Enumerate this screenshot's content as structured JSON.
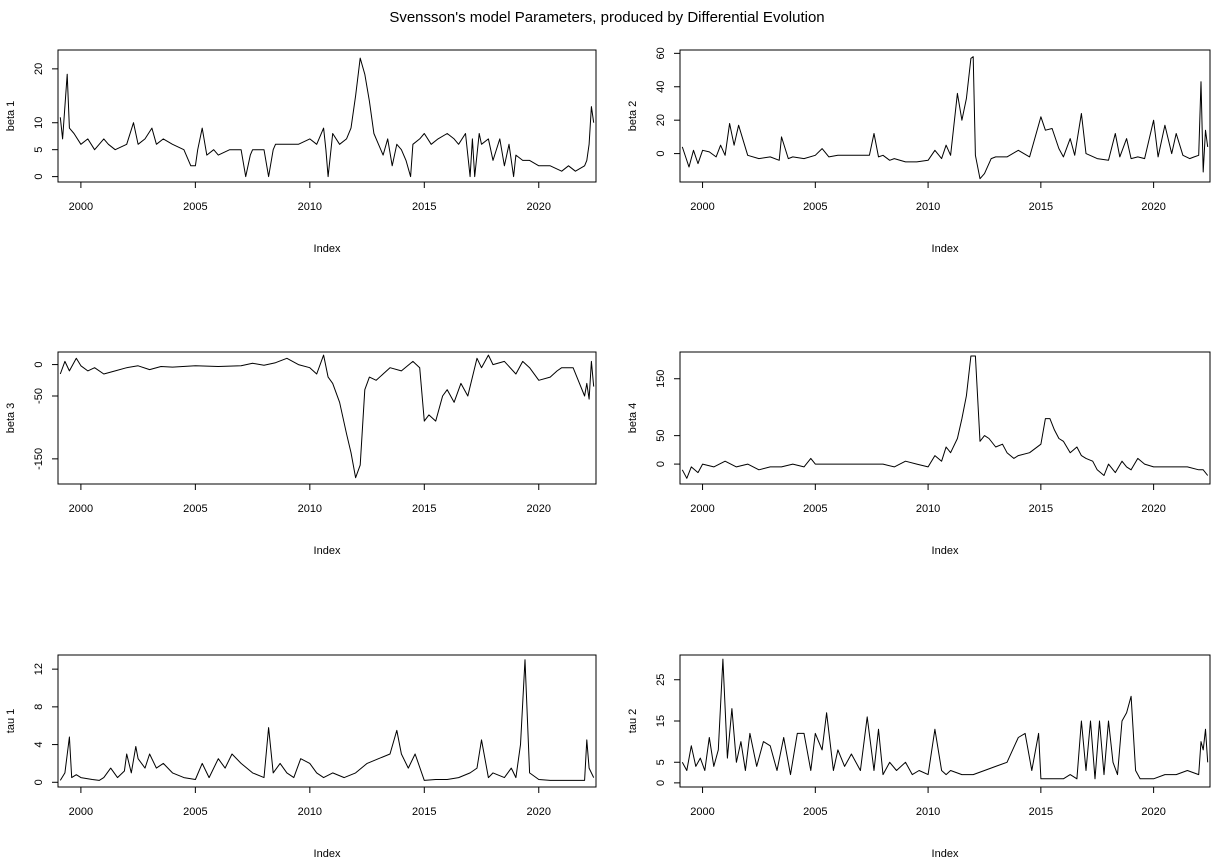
{
  "figure": {
    "title": "Svensson's model Parameters, produced by Differential Evolution"
  },
  "chart_data": [
    {
      "type": "line",
      "title": "",
      "xlabel": "Index",
      "ylabel": "beta 1",
      "xlim": [
        1999,
        2022.5
      ],
      "ylim": [
        -1,
        23.5
      ],
      "xticks": [
        2000,
        2005,
        2010,
        2015,
        2020
      ],
      "yticks": [
        0,
        5,
        10,
        20
      ],
      "series": [
        {
          "x": [
            1999.1,
            1999.2,
            1999.4,
            1999.5,
            1999.7,
            2000.0,
            2000.3,
            2000.6,
            2001.0,
            2001.2,
            2001.5,
            2002.0,
            2002.3,
            2002.5,
            2002.8,
            2003.1,
            2003.3,
            2003.6,
            2004.0,
            2004.5,
            2004.8,
            2005.0,
            2005.1,
            2005.3,
            2005.5,
            2005.8,
            2006.0,
            2006.5,
            2007.0,
            2007.2,
            2007.4,
            2007.5,
            2008.0,
            2008.2,
            2008.4,
            2008.5,
            2009.0,
            2009.5,
            2010.0,
            2010.3,
            2010.6,
            2010.7,
            2010.8,
            2011.0,
            2011.3,
            2011.6,
            2011.8,
            2012.0,
            2012.2,
            2012.4,
            2012.6,
            2012.8,
            2013.0,
            2013.2,
            2013.4,
            2013.6,
            2013.8,
            2014.0,
            2014.2,
            2014.4,
            2014.5,
            2014.8,
            2015.0,
            2015.3,
            2015.6,
            2016.0,
            2016.3,
            2016.5,
            2016.8,
            2017.0,
            2017.1,
            2017.2,
            2017.4,
            2017.5,
            2017.8,
            2018.0,
            2018.3,
            2018.5,
            2018.7,
            2018.9,
            2019.0,
            2019.3,
            2019.6,
            2020.0,
            2020.5,
            2021.0,
            2021.3,
            2021.6,
            2022.0,
            2022.1,
            2022.2,
            2022.3,
            2022.4
          ],
          "y": [
            11,
            7,
            19,
            9,
            8,
            6,
            7,
            5,
            7,
            6,
            5,
            6,
            10,
            6,
            7,
            9,
            6,
            7,
            6,
            5,
            2,
            2,
            5,
            9,
            4,
            5,
            4,
            5,
            5,
            0,
            4,
            5,
            5,
            0,
            5,
            6,
            6,
            6,
            7,
            6,
            9,
            5,
            0,
            8,
            6,
            7,
            9,
            15,
            22,
            19,
            14,
            8,
            6,
            4,
            7,
            2,
            6,
            5,
            3,
            0,
            6,
            7,
            8,
            6,
            7,
            8,
            7,
            6,
            8,
            0,
            7,
            0,
            8,
            6,
            7,
            3,
            7,
            2,
            6,
            0,
            4,
            3,
            3,
            2,
            2,
            1,
            2,
            1,
            2,
            3,
            6,
            13,
            10
          ]
        }
      ]
    },
    {
      "type": "line",
      "title": "",
      "xlabel": "Index",
      "ylabel": "beta 2",
      "xlim": [
        1999,
        2022.5
      ],
      "ylim": [
        -17,
        62
      ],
      "xticks": [
        2000,
        2005,
        2010,
        2015,
        2020
      ],
      "yticks": [
        0,
        20,
        40,
        60
      ],
      "series": [
        {
          "x": [
            1999.1,
            1999.4,
            1999.6,
            1999.8,
            2000.0,
            2000.3,
            2000.6,
            2000.8,
            2001.0,
            2001.2,
            2001.4,
            2001.6,
            2002.0,
            2002.5,
            2003.0,
            2003.4,
            2003.5,
            2003.8,
            2004.0,
            2004.5,
            2005.0,
            2005.3,
            2005.6,
            2006.0,
            2006.5,
            2007.0,
            2007.4,
            2007.6,
            2007.8,
            2008.0,
            2008.3,
            2008.5,
            2009.0,
            2009.5,
            2010.0,
            2010.3,
            2010.6,
            2010.8,
            2011.0,
            2011.3,
            2011.5,
            2011.7,
            2011.9,
            2012.0,
            2012.1,
            2012.3,
            2012.5,
            2012.8,
            2013.0,
            2013.5,
            2014.0,
            2014.5,
            2015.0,
            2015.2,
            2015.5,
            2015.8,
            2016.0,
            2016.3,
            2016.5,
            2016.8,
            2017.0,
            2017.5,
            2018.0,
            2018.3,
            2018.5,
            2018.8,
            2019.0,
            2019.3,
            2019.6,
            2020.0,
            2020.2,
            2020.5,
            2020.8,
            2021.0,
            2021.3,
            2021.6,
            2021.8,
            2022.0,
            2022.1,
            2022.2,
            2022.3,
            2022.4
          ],
          "y": [
            4,
            -8,
            2,
            -6,
            2,
            1,
            -2,
            5,
            -1,
            18,
            5,
            17,
            -1,
            -3,
            -2,
            -4,
            10,
            -3,
            -2,
            -3,
            -1,
            3,
            -2,
            -1,
            -1,
            -1,
            -1,
            12,
            -2,
            -1,
            -4,
            -3,
            -5,
            -5,
            -4,
            2,
            -3,
            5,
            -1,
            36,
            20,
            33,
            57,
            58,
            -1,
            -15,
            -12,
            -3,
            -2,
            -2,
            2,
            -2,
            22,
            14,
            15,
            3,
            -2,
            9,
            -1,
            24,
            0,
            -3,
            -4,
            12,
            -2,
            9,
            -3,
            -2,
            -3,
            20,
            -2,
            17,
            0,
            12,
            -1,
            -3,
            -2,
            -1,
            43,
            -11,
            14,
            4
          ]
        }
      ]
    },
    {
      "type": "line",
      "title": "",
      "xlabel": "Index",
      "ylabel": "beta 3",
      "xlim": [
        1999,
        2022.5
      ],
      "ylim": [
        -190,
        20
      ],
      "xticks": [
        2000,
        2005,
        2010,
        2015,
        2020
      ],
      "yticks": [
        0,
        -50,
        -150
      ],
      "series": [
        {
          "x": [
            1999.1,
            1999.3,
            1999.5,
            1999.8,
            2000.0,
            2000.3,
            2000.6,
            2001.0,
            2001.5,
            2002.0,
            2002.5,
            2003.0,
            2003.5,
            2004.0,
            2005.0,
            2006.0,
            2007.0,
            2007.5,
            2008.0,
            2008.5,
            2009.0,
            2009.5,
            2010.0,
            2010.3,
            2010.6,
            2010.8,
            2011.0,
            2011.3,
            2011.6,
            2011.8,
            2012.0,
            2012.2,
            2012.4,
            2012.6,
            2012.9,
            2013.2,
            2013.5,
            2014.0,
            2014.5,
            2014.8,
            2015.0,
            2015.2,
            2015.5,
            2015.8,
            2016.0,
            2016.3,
            2016.6,
            2016.9,
            2017.1,
            2017.3,
            2017.5,
            2017.8,
            2018.0,
            2018.5,
            2019.0,
            2019.3,
            2019.6,
            2020.0,
            2020.5,
            2020.8,
            2021.0,
            2021.5,
            2022.0,
            2022.1,
            2022.2,
            2022.3,
            2022.4
          ],
          "y": [
            -15,
            5,
            -10,
            10,
            -2,
            -10,
            -5,
            -15,
            -10,
            -5,
            -2,
            -8,
            -3,
            -4,
            -2,
            -3,
            -2,
            2,
            -1,
            3,
            10,
            0,
            -5,
            -15,
            15,
            -20,
            -30,
            -60,
            -110,
            -140,
            -180,
            -160,
            -40,
            -20,
            -25,
            -15,
            -5,
            -10,
            5,
            -5,
            -90,
            -80,
            -90,
            -50,
            -40,
            -60,
            -30,
            -50,
            -20,
            10,
            -5,
            15,
            0,
            5,
            -15,
            5,
            -5,
            -25,
            -20,
            -10,
            -5,
            -5,
            -50,
            -30,
            -55,
            5,
            -35
          ]
        }
      ]
    },
    {
      "type": "line",
      "title": "",
      "xlabel": "Index",
      "ylabel": "beta 4",
      "xlim": [
        1999,
        2022.5
      ],
      "ylim": [
        -35,
        197
      ],
      "xticks": [
        2000,
        2005,
        2010,
        2015,
        2020
      ],
      "yticks": [
        0,
        50,
        150
      ],
      "series": [
        {
          "x": [
            1999.1,
            1999.3,
            1999.5,
            1999.8,
            2000.0,
            2000.5,
            2001.0,
            2001.5,
            2002.0,
            2002.5,
            2003.0,
            2003.5,
            2004.0,
            2004.5,
            2004.8,
            2005.0,
            2005.5,
            2006.0,
            2006.5,
            2007.0,
            2007.5,
            2008.0,
            2008.5,
            2009.0,
            2009.5,
            2010.0,
            2010.3,
            2010.6,
            2010.8,
            2011.0,
            2011.3,
            2011.5,
            2011.7,
            2011.9,
            2012.1,
            2012.3,
            2012.5,
            2012.7,
            2013.0,
            2013.3,
            2013.5,
            2013.8,
            2014.0,
            2014.5,
            2015.0,
            2015.2,
            2015.4,
            2015.6,
            2015.8,
            2016.0,
            2016.3,
            2016.6,
            2016.8,
            2017.0,
            2017.3,
            2017.5,
            2017.8,
            2018.0,
            2018.3,
            2018.6,
            2018.8,
            2019.0,
            2019.3,
            2019.6,
            2020.0,
            2020.5,
            2021.0,
            2021.5,
            2022.0,
            2022.2,
            2022.4
          ],
          "y": [
            -10,
            -25,
            -5,
            -15,
            0,
            -5,
            5,
            -5,
            0,
            -10,
            -5,
            -5,
            0,
            -5,
            10,
            0,
            0,
            0,
            0,
            0,
            0,
            0,
            -5,
            5,
            0,
            -5,
            15,
            5,
            30,
            20,
            45,
            80,
            120,
            190,
            190,
            40,
            50,
            45,
            30,
            35,
            20,
            10,
            15,
            20,
            35,
            80,
            80,
            60,
            45,
            40,
            20,
            30,
            15,
            10,
            5,
            -10,
            -20,
            0,
            -15,
            5,
            -5,
            -10,
            10,
            0,
            -5,
            -5,
            -5,
            -5,
            -10,
            -10,
            -20
          ]
        }
      ]
    },
    {
      "type": "line",
      "title": "",
      "xlabel": "Index",
      "ylabel": "tau 1",
      "xlim": [
        1999,
        2022.5
      ],
      "ylim": [
        -0.5,
        13.5
      ],
      "xticks": [
        2000,
        2005,
        2010,
        2015,
        2020
      ],
      "yticks": [
        0,
        4,
        8,
        12
      ],
      "series": [
        {
          "x": [
            1999.1,
            1999.3,
            1999.5,
            1999.6,
            1999.8,
            2000.0,
            2000.5,
            2000.8,
            2001.0,
            2001.3,
            2001.6,
            2001.9,
            2002.0,
            2002.2,
            2002.4,
            2002.5,
            2002.8,
            2003.0,
            2003.3,
            2003.6,
            2004.0,
            2004.5,
            2005.0,
            2005.3,
            2005.6,
            2006.0,
            2006.3,
            2006.6,
            2007.0,
            2007.5,
            2008.0,
            2008.2,
            2008.4,
            2008.7,
            2009.0,
            2009.3,
            2009.6,
            2010.0,
            2010.3,
            2010.6,
            2011.0,
            2011.5,
            2012.0,
            2012.5,
            2013.0,
            2013.5,
            2013.8,
            2014.0,
            2014.3,
            2014.6,
            2015.0,
            2015.5,
            2016.0,
            2016.5,
            2017.0,
            2017.3,
            2017.5,
            2017.8,
            2018.0,
            2018.5,
            2018.8,
            2019.0,
            2019.2,
            2019.4,
            2019.6,
            2020.0,
            2020.5,
            2021.0,
            2021.5,
            2022.0,
            2022.1,
            2022.2,
            2022.4
          ],
          "y": [
            0.2,
            1,
            4.8,
            0.5,
            0.8,
            0.5,
            0.3,
            0.2,
            0.5,
            1.5,
            0.5,
            1.2,
            3,
            1,
            3.8,
            2.5,
            1.5,
            3,
            1.5,
            2,
            1,
            0.5,
            0.3,
            2,
            0.5,
            2.5,
            1.5,
            3,
            2,
            1,
            0.5,
            5.8,
            1,
            2,
            1,
            0.5,
            2.5,
            2,
            1,
            0.5,
            1,
            0.5,
            1,
            2,
            2.5,
            3,
            5.5,
            3,
            1.5,
            3,
            0.2,
            0.3,
            0.3,
            0.5,
            1,
            1.5,
            4.5,
            0.5,
            1,
            0.5,
            1.5,
            0.5,
            4,
            13,
            1,
            0.3,
            0.2,
            0.2,
            0.2,
            0.2,
            4.5,
            1.5,
            0.5
          ]
        }
      ]
    },
    {
      "type": "line",
      "title": "",
      "xlabel": "Index",
      "ylabel": "tau 2",
      "xlim": [
        1999,
        2022.5
      ],
      "ylim": [
        -1,
        31
      ],
      "xticks": [
        2000,
        2005,
        2010,
        2015,
        2020
      ],
      "yticks": [
        0,
        5,
        15,
        25
      ],
      "series": [
        {
          "x": [
            1999.1,
            1999.3,
            1999.5,
            1999.7,
            1999.9,
            2000.1,
            2000.3,
            2000.5,
            2000.7,
            2000.9,
            2001.1,
            2001.3,
            2001.5,
            2001.7,
            2001.9,
            2002.1,
            2002.4,
            2002.7,
            2003.0,
            2003.3,
            2003.6,
            2003.9,
            2004.2,
            2004.5,
            2004.8,
            2005.0,
            2005.3,
            2005.5,
            2005.8,
            2006.0,
            2006.3,
            2006.6,
            2007.0,
            2007.3,
            2007.6,
            2007.8,
            2008.0,
            2008.3,
            2008.6,
            2009.0,
            2009.3,
            2009.6,
            2010.0,
            2010.3,
            2010.6,
            2010.8,
            2011.0,
            2011.5,
            2012.0,
            2012.5,
            2013.0,
            2013.5,
            2014.0,
            2014.3,
            2014.6,
            2014.9,
            2015.0,
            2015.3,
            2015.6,
            2016.0,
            2016.3,
            2016.6,
            2016.8,
            2017.0,
            2017.2,
            2017.4,
            2017.6,
            2017.8,
            2018.0,
            2018.2,
            2018.4,
            2018.6,
            2018.8,
            2019.0,
            2019.2,
            2019.4,
            2019.6,
            2019.8,
            2020.0,
            2020.5,
            2021.0,
            2021.5,
            2022.0,
            2022.1,
            2022.2,
            2022.3,
            2022.4
          ],
          "y": [
            5,
            3,
            9,
            4,
            6,
            3,
            11,
            4,
            8,
            30,
            6,
            18,
            5,
            10,
            3,
            12,
            4,
            10,
            9,
            3,
            11,
            2,
            12,
            12,
            3,
            12,
            8,
            17,
            3,
            8,
            4,
            7,
            3,
            16,
            3,
            13,
            2,
            5,
            3,
            5,
            2,
            3,
            2,
            13,
            3,
            2,
            3,
            2,
            2,
            3,
            4,
            5,
            11,
            12,
            3,
            12,
            1,
            1,
            1,
            1,
            2,
            1,
            15,
            3,
            15,
            1,
            15,
            2,
            15,
            5,
            2,
            15,
            17,
            21,
            3,
            1,
            1,
            1,
            1,
            2,
            2,
            3,
            2,
            10,
            8,
            13,
            5
          ]
        }
      ]
    }
  ]
}
